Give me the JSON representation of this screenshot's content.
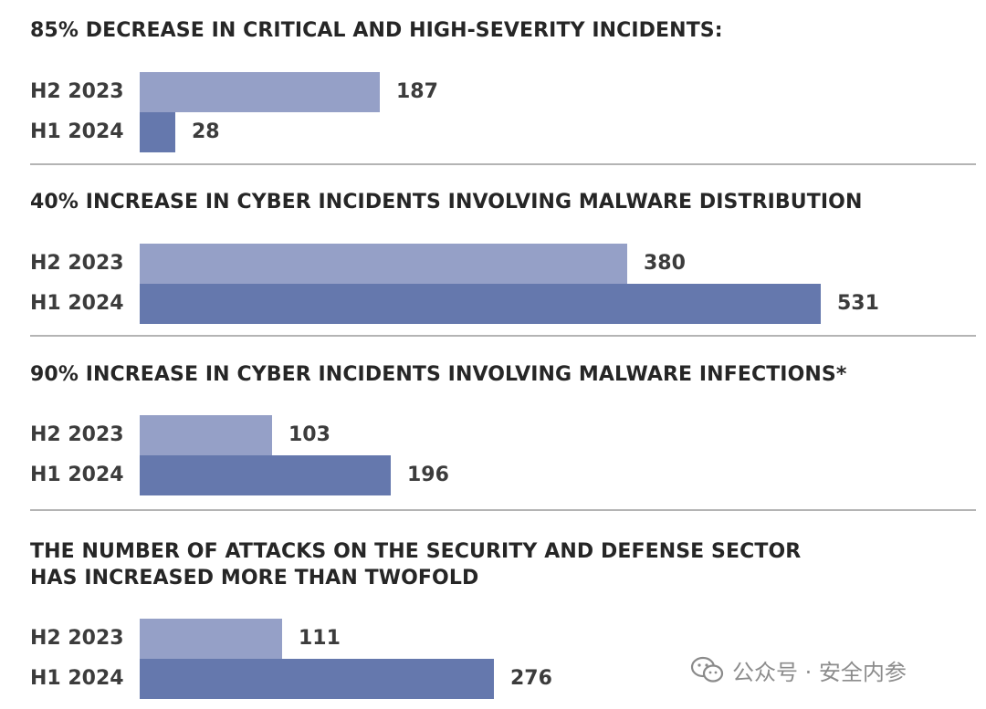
{
  "chart_data": [
    {
      "type": "bar",
      "title": "85% DECREASE IN CRITICAL AND HIGH-SEVERITY INCIDENTS:",
      "categories": [
        "H2 2023",
        "H1 2024"
      ],
      "values": [
        187,
        28
      ],
      "value_labels": [
        "187",
        "28"
      ],
      "xlim": [
        0,
        600
      ],
      "orientation": "horizontal",
      "colors": [
        "#95a0c7",
        "#6578ad"
      ]
    },
    {
      "type": "bar",
      "title": "40% INCREASE IN CYBER INCIDENTS INVOLVING MALWARE DISTRIBUTION",
      "categories": [
        "H2 2023",
        "H1 2024"
      ],
      "values": [
        380,
        531
      ],
      "value_labels": [
        "380",
        "531"
      ],
      "xlim": [
        0,
        600
      ],
      "orientation": "horizontal",
      "colors": [
        "#95a0c7",
        "#6578ad"
      ]
    },
    {
      "type": "bar",
      "title": "90% INCREASE IN CYBER INCIDENTS INVOLVING MALWARE INFECTIONS*",
      "categories": [
        "H2 2023",
        "H1 2024"
      ],
      "values": [
        103,
        196
      ],
      "value_labels": [
        "103",
        "196"
      ],
      "xlim": [
        0,
        600
      ],
      "orientation": "horizontal",
      "colors": [
        "#95a0c7",
        "#6578ad"
      ]
    },
    {
      "type": "bar",
      "title_lines": [
        "THE NUMBER OF ATTACKS ON THE SECURITY AND DEFENSE SECTOR",
        "HAS INCREASED MORE THAN TWOFOLD"
      ],
      "categories": [
        "H2 2023",
        "H1 2024"
      ],
      "values": [
        111,
        276
      ],
      "value_labels": [
        "111",
        "276"
      ],
      "xlim": [
        0,
        600
      ],
      "orientation": "horizontal",
      "colors": [
        "#95a0c7",
        "#6578ad"
      ]
    }
  ],
  "watermark": {
    "icon": "wechat-icon",
    "text": "公众号 · 安全内参"
  }
}
